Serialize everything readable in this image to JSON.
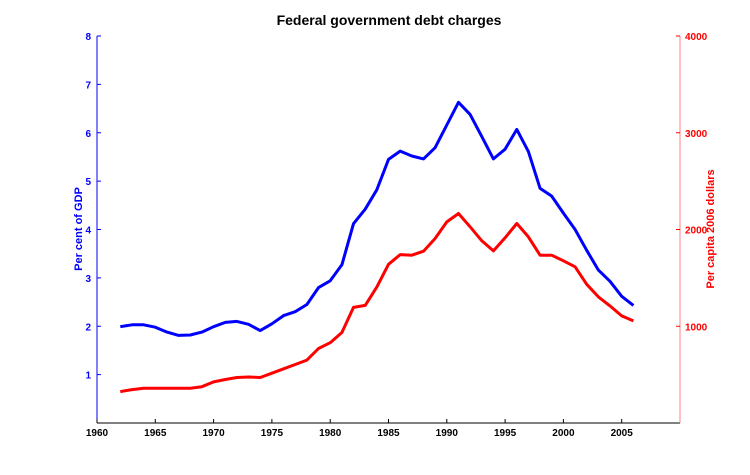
{
  "chart_data": {
    "type": "line",
    "title": "Federal government debt charges",
    "xlabel": "",
    "ylabel_left": "Per cent of GDP",
    "ylabel_right": "Per capita 2006 dollars",
    "xlim": [
      1960,
      2010
    ],
    "ylim_left": [
      0,
      8
    ],
    "ylim_right": [
      0,
      4000
    ],
    "x_ticks": [
      "1960",
      "1965",
      "1970",
      "1975",
      "1980",
      "1985",
      "1990",
      "1995",
      "2000",
      "2005"
    ],
    "y_ticks_left": [
      "1",
      "2",
      "3",
      "4",
      "5",
      "6",
      "7",
      "8"
    ],
    "y_ticks_right": [
      "1000",
      "2000",
      "3000",
      "4000"
    ],
    "grid": false,
    "x": [
      1962,
      1963,
      1964,
      1965,
      1966,
      1967,
      1968,
      1969,
      1970,
      1971,
      1972,
      1973,
      1974,
      1975,
      1976,
      1977,
      1978,
      1979,
      1980,
      1981,
      1982,
      1983,
      1984,
      1985,
      1986,
      1987,
      1988,
      1989,
      1990,
      1991,
      1992,
      1993,
      1994,
      1995,
      1996,
      1997,
      1998,
      1999,
      2000,
      2001,
      2002,
      2003,
      2004,
      2005,
      2006
    ],
    "series": [
      {
        "axis": "left",
        "color": "#0000ff",
        "values": [
          1.99,
          2.03,
          2.03,
          1.98,
          1.88,
          1.81,
          1.82,
          1.88,
          1.99,
          2.08,
          2.1,
          2.04,
          1.91,
          2.05,
          2.22,
          2.3,
          2.45,
          2.8,
          2.94,
          3.27,
          4.12,
          4.42,
          4.82,
          5.45,
          5.62,
          5.52,
          5.46,
          5.69,
          6.16,
          6.63,
          6.38,
          5.92,
          5.46,
          5.66,
          6.07,
          5.61,
          4.85,
          4.69,
          4.34,
          4.0,
          3.57,
          3.16,
          2.93,
          2.62,
          2.43
        ]
      },
      {
        "axis": "right",
        "color": "#ff0000",
        "values": [
          325,
          345,
          360,
          360,
          360,
          360,
          360,
          375,
          425,
          450,
          470,
          475,
          470,
          515,
          560,
          605,
          650,
          770,
          830,
          935,
          1195,
          1215,
          1405,
          1640,
          1741,
          1734,
          1776,
          1907,
          2079,
          2165,
          2028,
          1883,
          1779,
          1914,
          2062,
          1924,
          1734,
          1734,
          1676,
          1614,
          1434,
          1303,
          1210,
          1107,
          1055
        ]
      }
    ]
  }
}
